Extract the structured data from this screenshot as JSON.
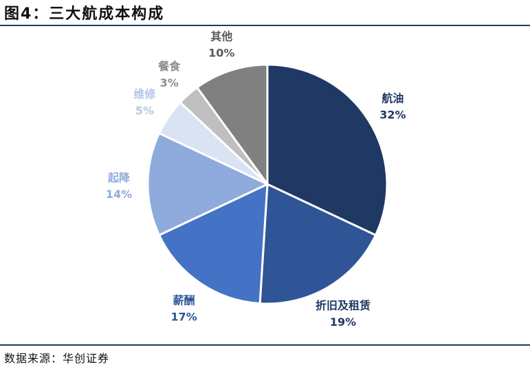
{
  "header": {
    "title": "图4：三大航成本构成"
  },
  "footer": {
    "source": "数据来源：华创证券"
  },
  "chart_data": {
    "type": "pie",
    "title": "",
    "start_angle_deg": 0,
    "direction": "clockwise",
    "slices": [
      {
        "label": "航油",
        "value": 32,
        "value_label": "32%",
        "color": "#203864",
        "label_color": "#203864"
      },
      {
        "label": "折旧及租赁",
        "value": 19,
        "value_label": "19%",
        "color": "#2f5597",
        "label_color": "#1f3864"
      },
      {
        "label": "薪酬",
        "value": 17,
        "value_label": "17%",
        "color": "#4472c4",
        "label_color": "#2f5597"
      },
      {
        "label": "起降",
        "value": 14,
        "value_label": "14%",
        "color": "#8faadc",
        "label_color": "#8faadc"
      },
      {
        "label": "维修",
        "value": 5,
        "value_label": "5%",
        "color": "#dae3f3",
        "label_color": "#b4c7e7"
      },
      {
        "label": "餐食",
        "value": 3,
        "value_label": "3%",
        "color": "#bfbfbf",
        "label_color": "#8c8c8c"
      },
      {
        "label": "其他",
        "value": 10,
        "value_label": "10%",
        "color": "#808080",
        "label_color": "#595959"
      }
    ]
  }
}
